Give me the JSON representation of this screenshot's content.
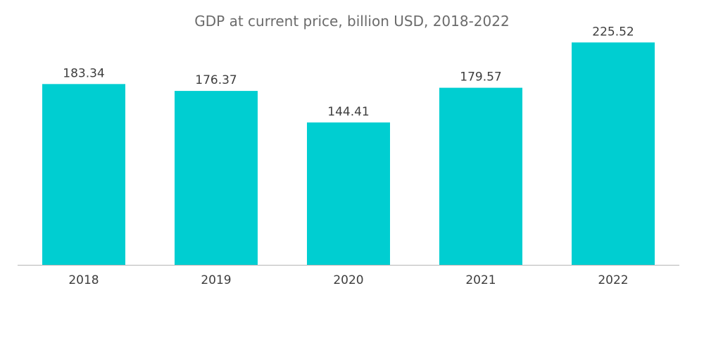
{
  "chart_data": {
    "type": "bar",
    "title": "GDP at current price, billion USD, 2018-2022",
    "xlabel": "",
    "ylabel": "",
    "categories": [
      "2018",
      "2019",
      "2020",
      "2021",
      "2022"
    ],
    "values": [
      183.34,
      176.37,
      144.41,
      179.57,
      225.52
    ],
    "value_labels": [
      "183.34",
      "176.37",
      "144.41",
      "179.57",
      "225.52"
    ],
    "ylim": [
      0,
      240
    ],
    "grid": false,
    "legend": "none",
    "colors": {
      "bar": "#00CED1",
      "axis": "#b5b5b5",
      "text": "#3d3d3d",
      "title": "#6b6b6b"
    }
  }
}
